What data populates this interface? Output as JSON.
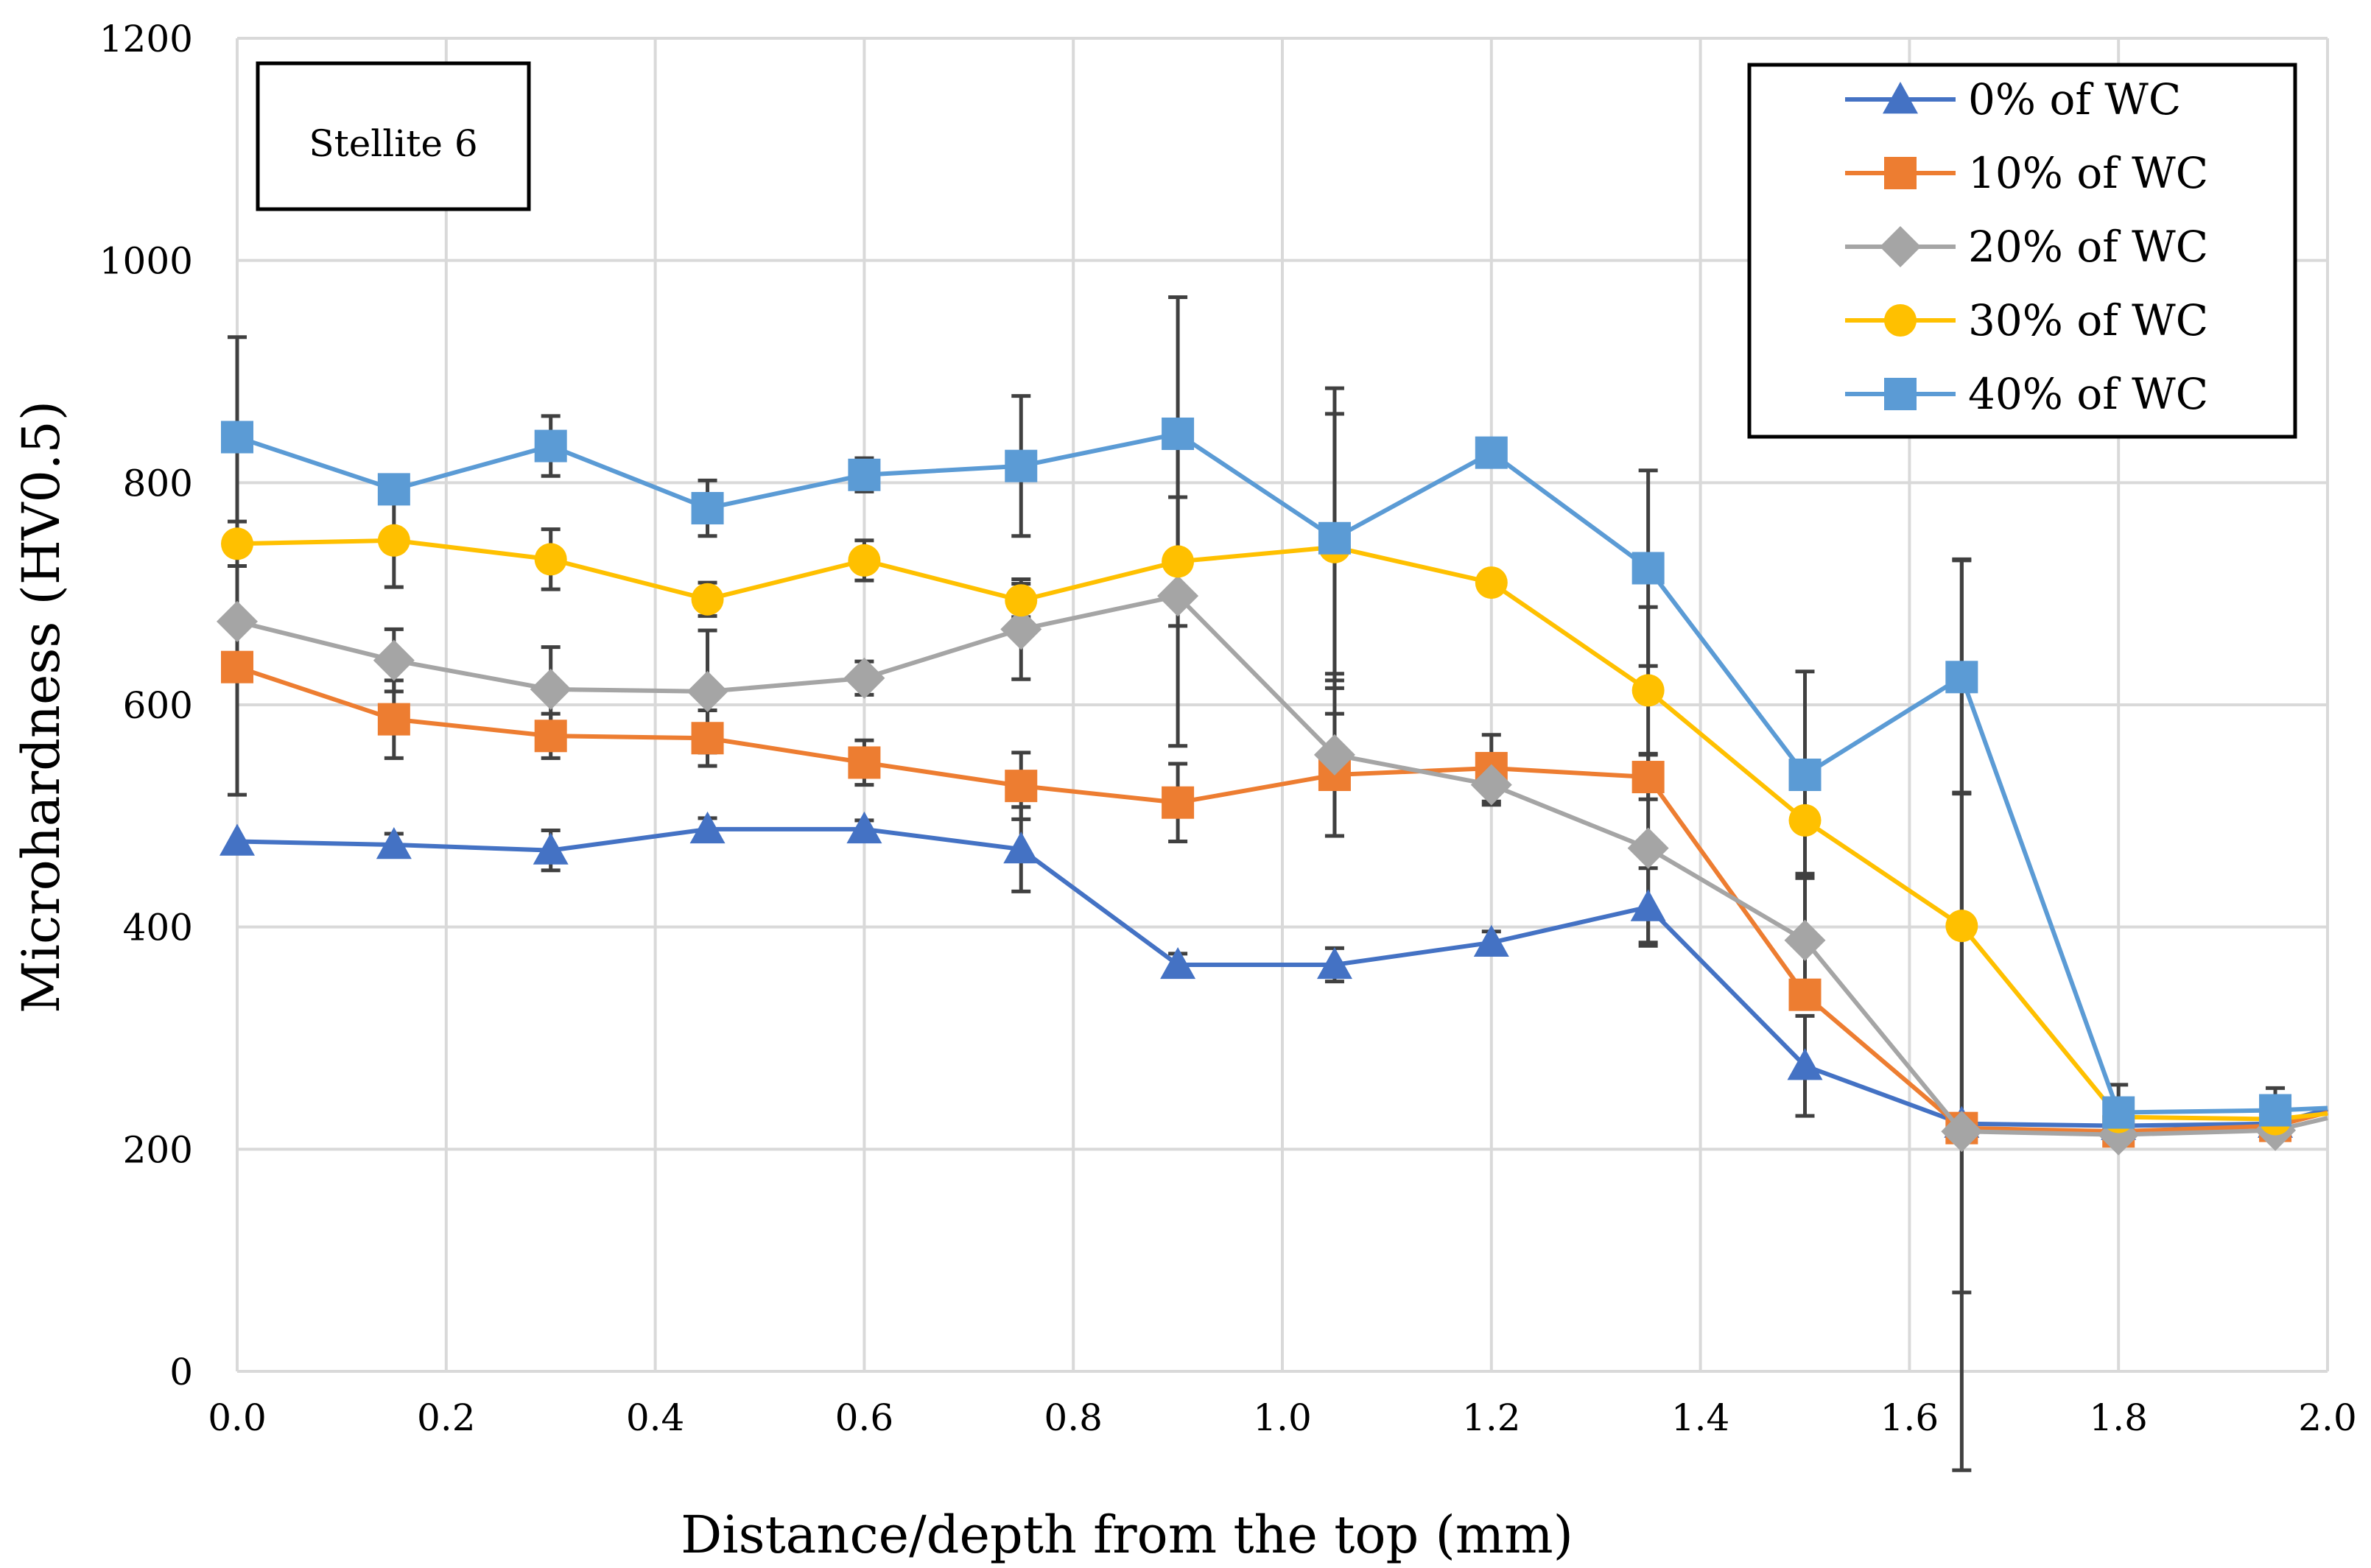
{
  "chart_data": {
    "type": "line",
    "annotation": "Stellite 6",
    "xlabel": "Distance/depth from the top (mm)",
    "ylabel": "Microhardness (HV0.5)",
    "xlim": [
      0,
      2.0
    ],
    "ylim": [
      0,
      1200
    ],
    "xticks": [
      0,
      0.2,
      0.4,
      0.6,
      0.8,
      1.0,
      1.2,
      1.4,
      1.6,
      1.8,
      2.0
    ],
    "xtick_labels": [
      "0.0",
      "0.2",
      "0.4",
      "0.6",
      "0.8",
      "1.0",
      "1.2",
      "1.4",
      "1.6",
      "1.8",
      "2.0"
    ],
    "yticks": [
      0,
      200,
      400,
      600,
      800,
      1000,
      1200
    ],
    "ytick_labels": [
      "0",
      "200",
      "400",
      "600",
      "800",
      "1000",
      "1200"
    ],
    "grid": true,
    "legend_position": "top-right",
    "x": [
      0,
      0.15,
      0.3,
      0.45,
      0.6,
      0.75,
      0.9,
      1.05,
      1.2,
      1.35,
      1.5,
      1.65,
      1.8,
      1.95
    ],
    "series": [
      {
        "name": "0% of WC",
        "color": "#4472c4",
        "marker": "triangle",
        "values": [
          477,
          474,
          469,
          488,
          488,
          470,
          366,
          366,
          386,
          418,
          275,
          223,
          221,
          223
        ],
        "errors": [
          0,
          10,
          18,
          10,
          8,
          38,
          10,
          15,
          10,
          35,
          45,
          0,
          0,
          0
        ],
        "end_value": 236
      },
      {
        "name": "10% of WC",
        "color": "#ed7d31",
        "marker": "square",
        "values": [
          634,
          587,
          572,
          570,
          548,
          527,
          512,
          537,
          543,
          535,
          339,
          219,
          216,
          221
        ],
        "errors": [
          115,
          35,
          20,
          25,
          20,
          30,
          35,
          55,
          30,
          20,
          0,
          0,
          0,
          0
        ],
        "end_value": 233
      },
      {
        "name": "20% of WC",
        "color": "#a5a5a5",
        "marker": "diamond",
        "values": [
          675,
          640,
          614,
          612,
          624,
          668,
          698,
          555,
          528,
          471,
          388,
          216,
          213,
          217
        ],
        "errors": [
          0,
          28,
          38,
          55,
          15,
          45,
          135,
          73,
          18,
          85,
          60,
          305,
          0,
          0
        ],
        "end_value": 228
      },
      {
        "name": "30% of WC",
        "color": "#ffc000",
        "marker": "circle",
        "values": [
          745,
          748,
          731,
          695,
          730,
          694,
          729,
          742,
          710,
          613,
          496,
          401,
          229,
          227
        ],
        "errors": [
          20,
          42,
          27,
          15,
          18,
          15,
          58,
          120,
          8,
          75,
          50,
          330,
          0,
          0
        ],
        "end_value": 232
      },
      {
        "name": "40% of WC",
        "color": "#5b9bd5",
        "marker": "square",
        "values": [
          841,
          794,
          833,
          777,
          807,
          815,
          844,
          750,
          827,
          723,
          537,
          625,
          233,
          235
        ],
        "errors": [
          90,
          0,
          27,
          25,
          15,
          63,
          123,
          135,
          0,
          88,
          93,
          105,
          25,
          20
        ],
        "end_value": 237
      }
    ]
  }
}
